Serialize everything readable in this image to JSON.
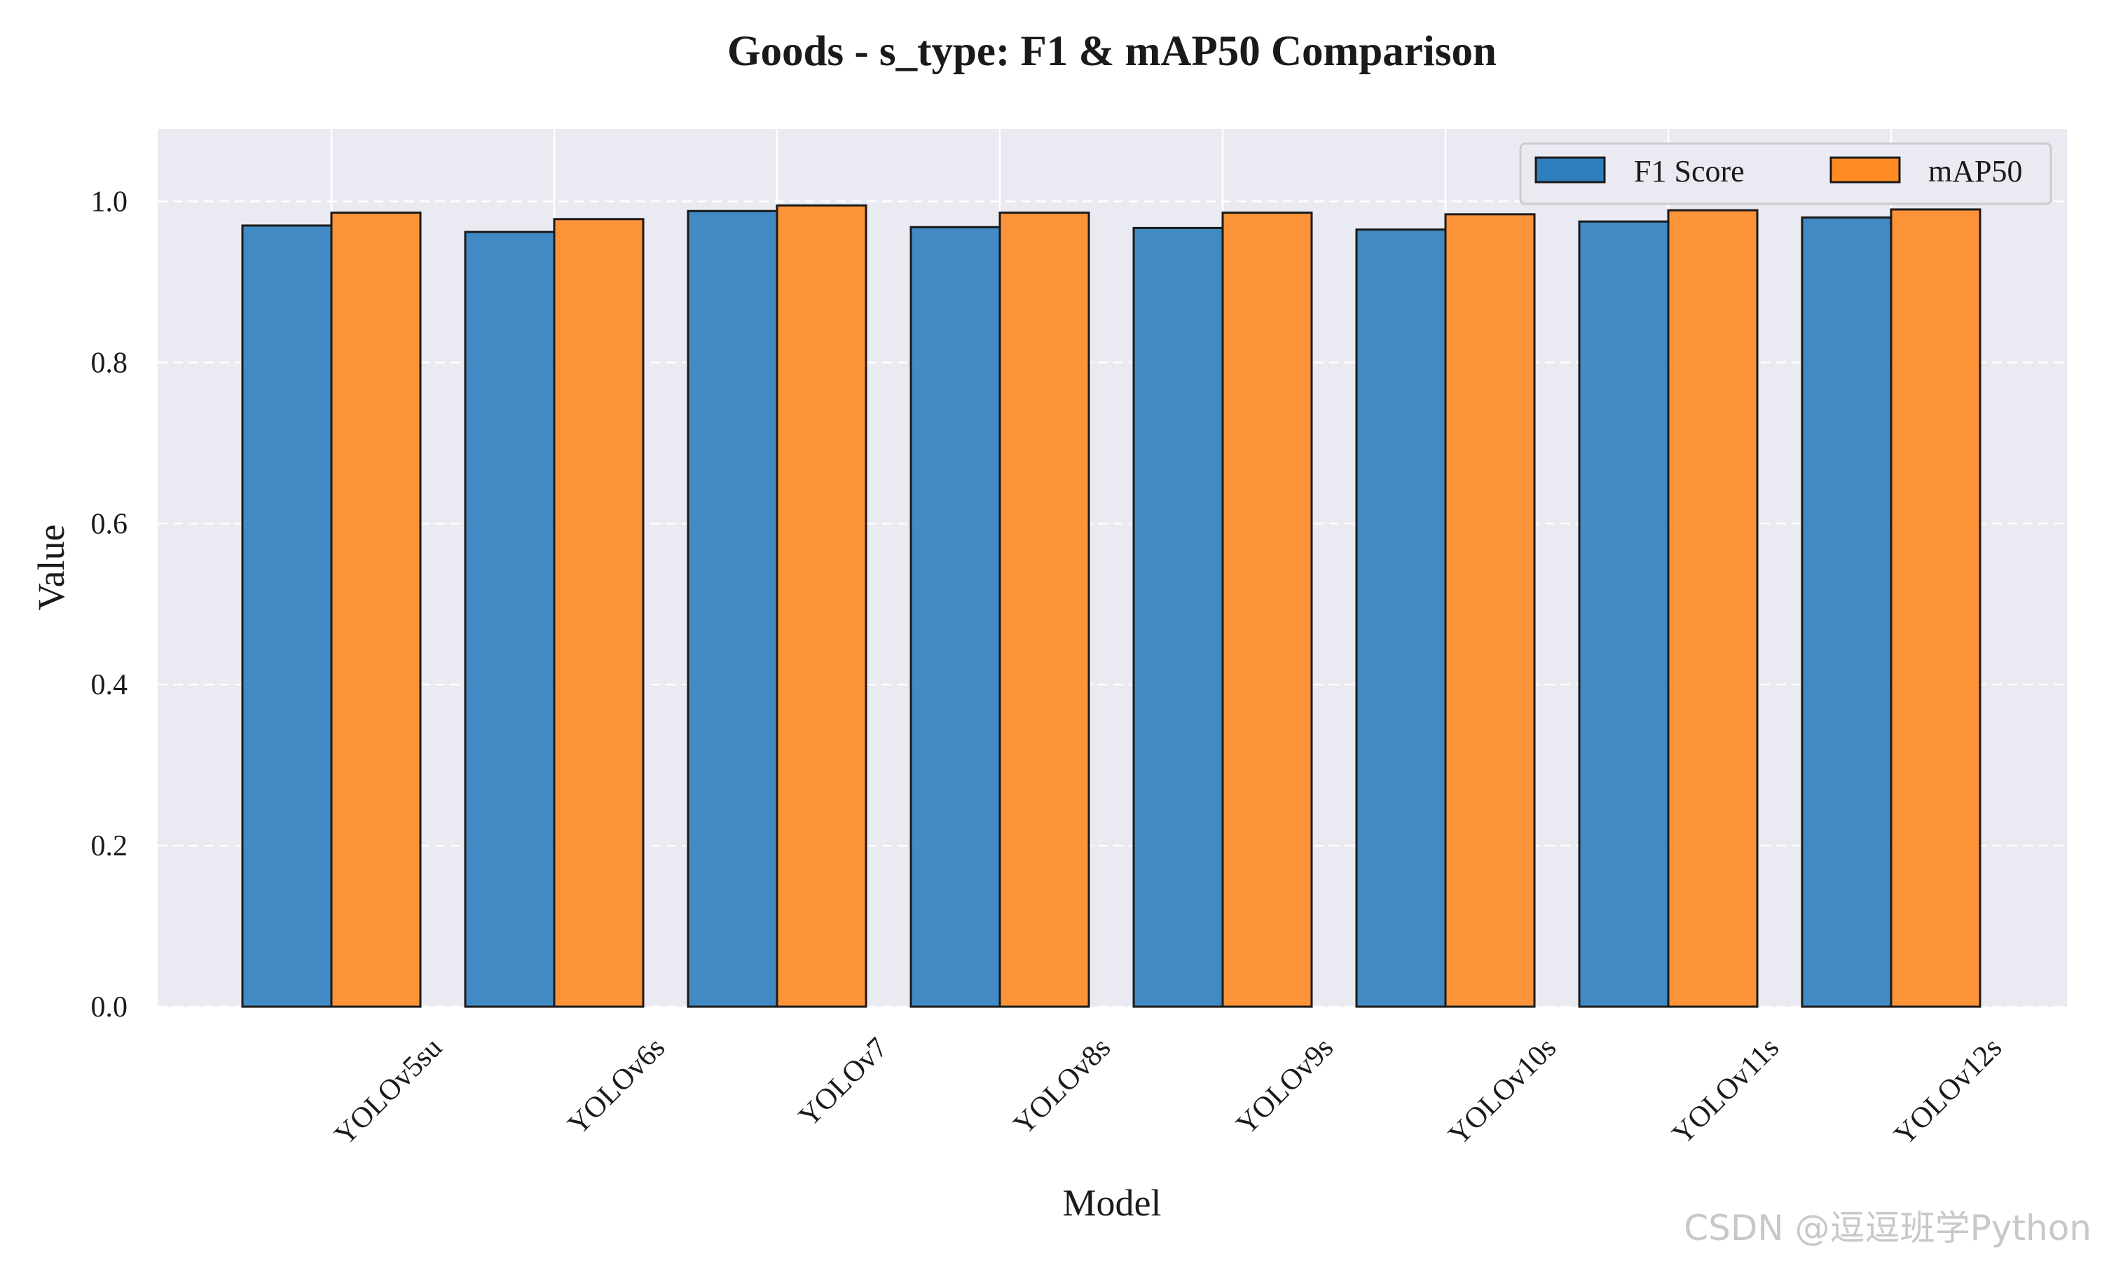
{
  "chart_data": {
    "type": "bar",
    "title": "Goods - s_type: F1 & mAP50 Comparison",
    "xlabel": "Model",
    "ylabel": "Value",
    "categories": [
      "YOLOv5su",
      "YOLOv6s",
      "YOLOv7",
      "YOLOv8s",
      "YOLOv9s",
      "YOLOv10s",
      "YOLOv11s",
      "YOLOv12s"
    ],
    "series": [
      {
        "name": "F1 Score",
        "color": "#2f7fbf",
        "values": [
          0.97,
          0.962,
          0.988,
          0.968,
          0.967,
          0.965,
          0.975,
          0.98
        ]
      },
      {
        "name": "mAP50",
        "color": "#ff8a24",
        "values": [
          0.986,
          0.978,
          0.995,
          0.986,
          0.986,
          0.984,
          0.989,
          0.99
        ]
      }
    ],
    "ylim": [
      0,
      1.09
    ],
    "yticks": [
      "0.0",
      "0.2",
      "0.4",
      "0.6",
      "0.8",
      "1.0"
    ],
    "grid": true,
    "legend_position": "top-right",
    "background": "#eaeaf2"
  },
  "watermark": "CSDN @逗逗班学Python"
}
